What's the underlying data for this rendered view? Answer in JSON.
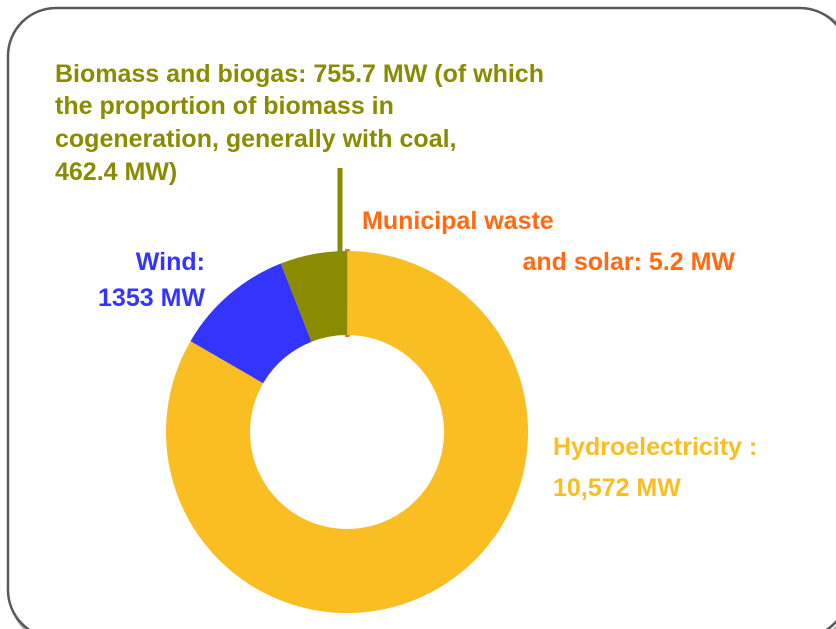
{
  "chart_data": {
    "type": "donut",
    "labels": [
      [
        "Municipal waste",
        "and solar: 5.2 MW"
      ],
      [
        "Hydroelectricity :",
        "10,572 MW"
      ],
      [
        "Wind:",
        "1353 MW"
      ],
      [
        "Biomass and biogas: 755.7 MW (of which",
        "the proportion of biomass in",
        "cogeneration, generally with coal,",
        "462.4 MW)"
      ]
    ],
    "values": [
      5.2,
      10572,
      1353,
      755.7
    ],
    "colors": [
      "#ff6a13",
      "#fabd22",
      "#3434ff",
      "#8b8b00"
    ]
  }
}
